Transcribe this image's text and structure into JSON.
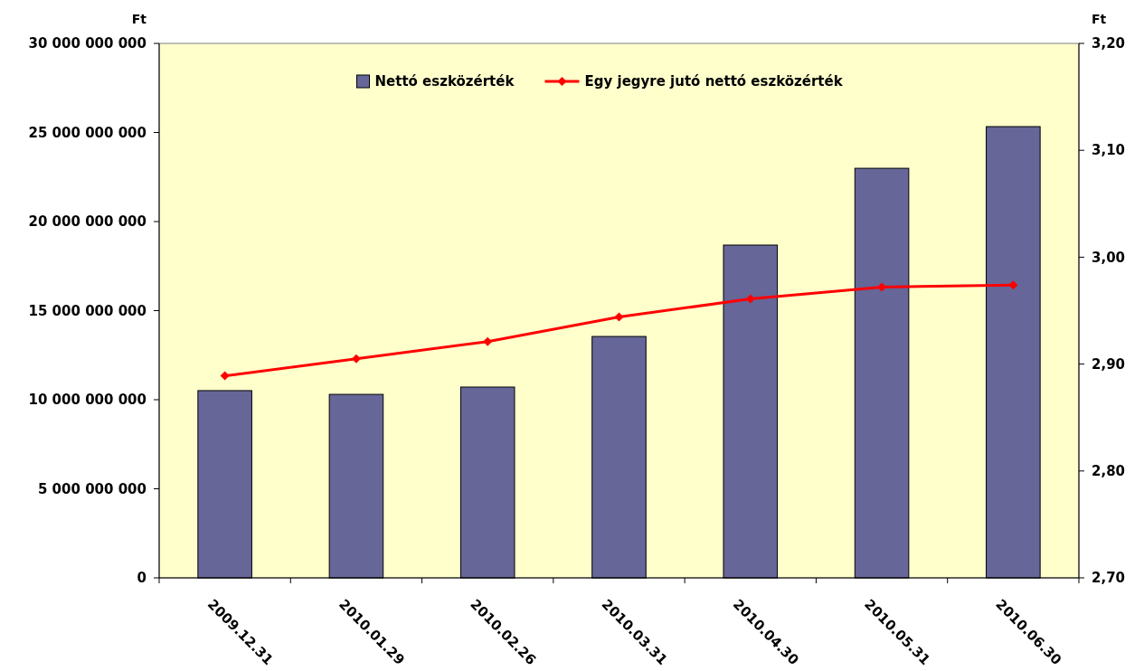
{
  "chart_data": {
    "type": "bar",
    "categories": [
      "2009.12.31",
      "2010.01.29",
      "2010.02.26",
      "2010.03.31",
      "2010.04.30",
      "2010.05.31",
      "2010.06.30"
    ],
    "series": [
      {
        "name": "Nettó eszközérték",
        "color": "#666699",
        "values": [
          10510000000,
          10300000000,
          10710000000,
          13550000000,
          18680000000,
          22990000000,
          25330000000
        ]
      },
      {
        "name": "Egy jegyre jutó nettó eszközérték",
        "type": "line",
        "axis": "y2",
        "color": "#ff0000",
        "marker": "diamond",
        "values": [
          2.889,
          2.905,
          2.921,
          2.944,
          2.961,
          2.972,
          2.974
        ]
      }
    ],
    "ylabel": "Ft",
    "y2label": "Ft",
    "ylim": [
      0,
      30000000000
    ],
    "yticks": [
      0,
      {
        "value": 5000000000,
        "label": "5 000 000 000"
      },
      {
        "value": 10000000000,
        "label": "10 000 000 000"
      },
      {
        "value": 15000000000,
        "label": "15 000 000 000"
      },
      {
        "value": 20000000000,
        "label": "20 000 000 000"
      },
      {
        "value": 25000000000,
        "label": "25 000 000 000"
      },
      {
        "value": 30000000000,
        "label": "30 000 000 000"
      }
    ],
    "y2lim": [
      2.7,
      3.2
    ],
    "y2ticks": [
      {
        "value": 2.7,
        "label": "2,70"
      },
      {
        "value": 2.8,
        "label": "2,80"
      },
      {
        "value": 2.9,
        "label": "2,90"
      },
      {
        "value": 3.0,
        "label": "3,00"
      },
      {
        "value": 3.1,
        "label": "3,10"
      },
      {
        "value": 3.2,
        "label": "3,20"
      }
    ],
    "legend": "top"
  }
}
